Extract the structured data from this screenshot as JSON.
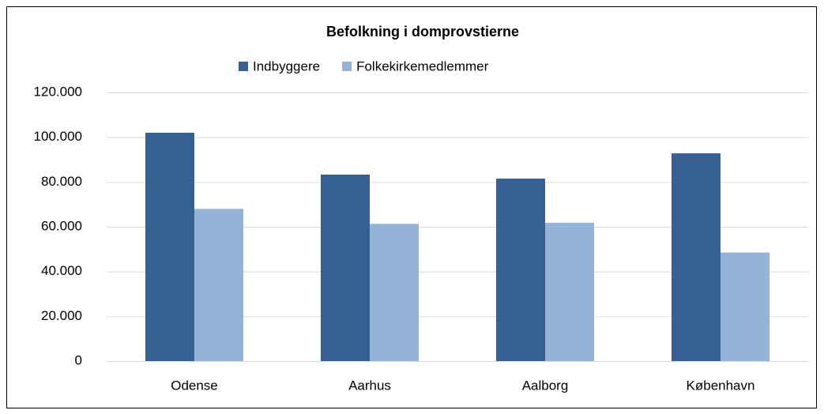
{
  "chart_data": {
    "type": "bar",
    "title": "Befolkning i domprovstierne",
    "categories": [
      "Odense",
      "Aarhus",
      "Aalborg",
      "København"
    ],
    "series": [
      {
        "name": "Indbyggere",
        "color": "#376092",
        "values": [
          102000,
          83300,
          81500,
          92800
        ]
      },
      {
        "name": "Folkekirkemedlemmer",
        "color": "#95b3d7",
        "values": [
          68000,
          61300,
          61800,
          48500
        ]
      }
    ],
    "ylim": [
      0,
      120000
    ],
    "yticks": [
      0,
      {
        "value": 20000,
        "label": "20.000"
      },
      {
        "value": 40000,
        "label": "40.000"
      },
      {
        "value": 60000,
        "label": "60.000"
      },
      {
        "value": 80000,
        "label": "80.000"
      },
      {
        "value": 100000,
        "label": "100.000"
      },
      {
        "value": 120000,
        "label": "120.000"
      }
    ],
    "grid": true,
    "legend": "top"
  }
}
